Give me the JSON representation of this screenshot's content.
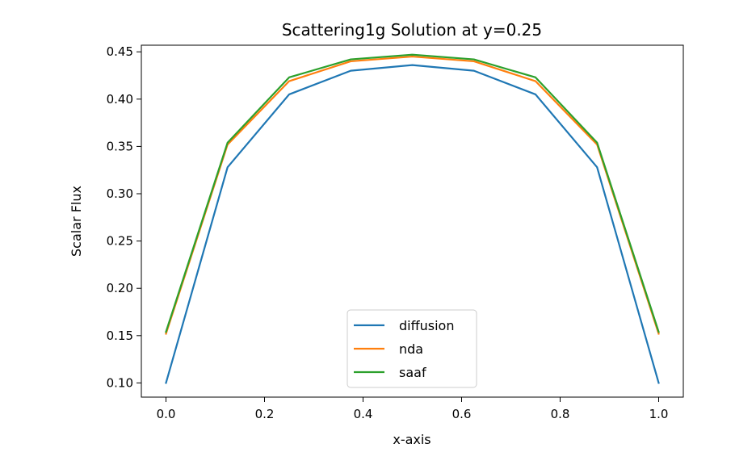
{
  "chart_data": {
    "type": "line",
    "title": "Scattering1g Solution at y=0.25",
    "xlabel": "x-axis",
    "ylabel": "Scalar Flux",
    "xlim": [
      -0.05,
      1.05
    ],
    "ylim": [
      0.085,
      0.457
    ],
    "xticks": [
      0.0,
      0.2,
      0.4,
      0.6,
      0.8,
      1.0
    ],
    "xtick_labels": [
      "0.0",
      "0.2",
      "0.4",
      "0.6",
      "0.8",
      "1.0"
    ],
    "yticks": [
      0.1,
      0.15,
      0.2,
      0.25,
      0.3,
      0.35,
      0.4,
      0.45
    ],
    "ytick_labels": [
      "0.10",
      "0.15",
      "0.20",
      "0.25",
      "0.30",
      "0.35",
      "0.40",
      "0.45"
    ],
    "grid": false,
    "legend_position": "lower-center",
    "x": [
      0.0,
      0.125,
      0.25,
      0.375,
      0.5,
      0.625,
      0.75,
      0.875,
      1.0
    ],
    "series": [
      {
        "name": "diffusion",
        "color": "#1f77b4",
        "values": [
          0.1,
          0.328,
          0.405,
          0.43,
          0.436,
          0.43,
          0.405,
          0.328,
          0.1
        ]
      },
      {
        "name": "nda",
        "color": "#ff7f0e",
        "values": [
          0.152,
          0.352,
          0.419,
          0.44,
          0.445,
          0.44,
          0.419,
          0.352,
          0.152
        ]
      },
      {
        "name": "saaf",
        "color": "#2ca02c",
        "values": [
          0.154,
          0.354,
          0.423,
          0.442,
          0.447,
          0.442,
          0.423,
          0.354,
          0.154
        ]
      }
    ]
  }
}
